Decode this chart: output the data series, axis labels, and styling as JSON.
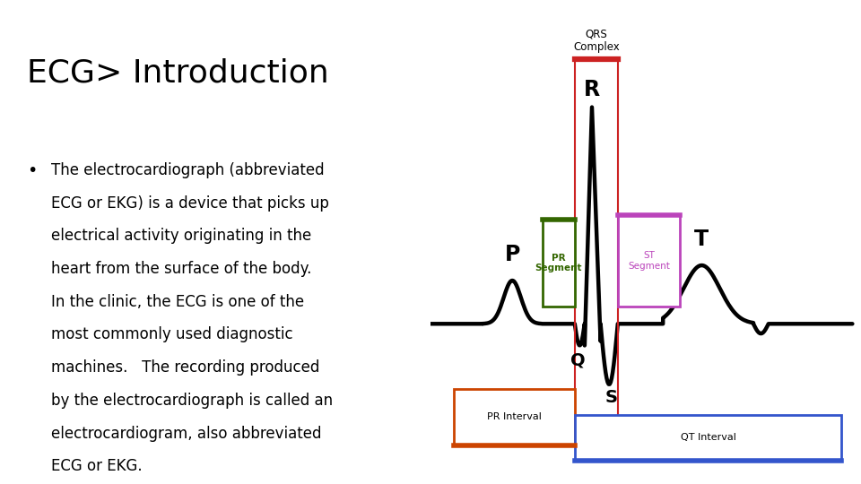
{
  "title": "ECG> Introduction",
  "bg_color": "#ffffff",
  "title_color": "#000000",
  "text_color": "#000000",
  "ecg_color": "#000000",
  "qrs_color": "#cc2222",
  "pr_seg_color": "#336600",
  "st_seg_color": "#bb44bb",
  "pr_int_color": "#cc4400",
  "qt_int_color": "#3355cc",
  "label_P": "P",
  "label_Q": "Q",
  "label_R": "R",
  "label_S": "S",
  "label_T": "T",
  "label_QRS_top": "QRS",
  "label_QRS_bot": "Complex",
  "label_PR_seg": "PR\nSegment",
  "label_ST_seg": "ST\nSegment",
  "label_PR_int": "PR Interval",
  "label_QT_int": "QT Interval",
  "bullet_lines": [
    "The electrocardiograph (abbreviated",
    "ECG or EKG) is a device that picks up",
    "electrical activity originating in the",
    "heart from the surface of the body.",
    "In the clinic, the ECG is one of the",
    "most commonly used diagnostic",
    "machines.   The recording produced",
    "by the electrocardiograph is called an",
    "electrocardiogram, also abbreviated",
    "ECG or EKG."
  ]
}
